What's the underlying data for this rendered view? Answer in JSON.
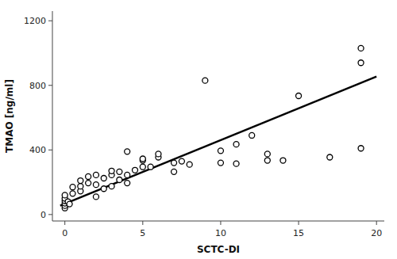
{
  "chart_data": {
    "type": "scatter",
    "xlabel": "SCTC-DI",
    "ylabel": "TMAO [ng/ml]",
    "xlim": [
      -0.8,
      20.5
    ],
    "ylim": [
      -40,
      1260
    ],
    "xticks": [
      0,
      5,
      10,
      15,
      20
    ],
    "yticks": [
      0,
      400,
      800,
      1200
    ],
    "grid": false,
    "series": [
      {
        "type": "scatter",
        "color": "black",
        "marker": "circle",
        "x": [
          0,
          0,
          0,
          0,
          0,
          0,
          0.2,
          0.3,
          0.5,
          0.5,
          1,
          1,
          1,
          1.5,
          1.5,
          2,
          2,
          2,
          2.5,
          2.5,
          3,
          3,
          3,
          3.5,
          3.5,
          4,
          4,
          4,
          4.5,
          5,
          5,
          5,
          5.5,
          6,
          6,
          7,
          7,
          7.5,
          8,
          9,
          10,
          10,
          11,
          11,
          12,
          13,
          13,
          14,
          15,
          17,
          19,
          19,
          19
        ],
        "values": [
          40,
          55,
          70,
          85,
          100,
          120,
          80,
          65,
          130,
          170,
          145,
          175,
          210,
          195,
          235,
          110,
          185,
          245,
          160,
          225,
          175,
          245,
          270,
          215,
          265,
          390,
          195,
          245,
          275,
          295,
          335,
          345,
          295,
          355,
          375,
          320,
          265,
          330,
          310,
          830,
          320,
          395,
          315,
          435,
          490,
          335,
          375,
          335,
          735,
          355,
          410,
          940,
          1030
        ]
      },
      {
        "type": "line",
        "color": "black",
        "x": [
          -0.3,
          20
        ],
        "values": [
          55,
          855
        ]
      }
    ]
  }
}
